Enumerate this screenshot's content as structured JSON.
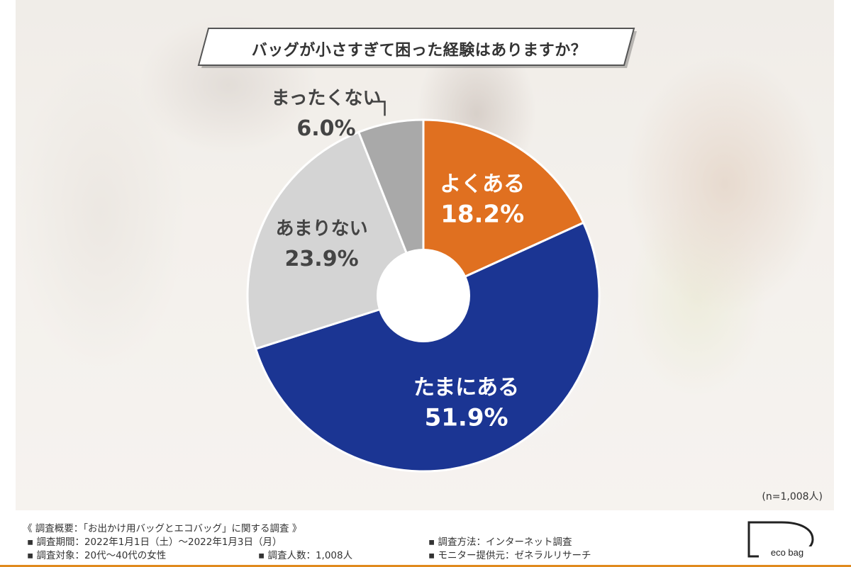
{
  "title": "バッグが小さすぎて困った経験はありますか？",
  "sample_note": "(n=1,008人)",
  "chart_data": {
    "type": "pie",
    "title": "バッグが小さすぎて困った経験はありますか？",
    "slices": [
      {
        "label": "よくある",
        "value": 18.2,
        "display": "18.2%",
        "color": "#e07020"
      },
      {
        "label": "たまにある",
        "value": 51.9,
        "display": "51.9%",
        "color": "#1b3593"
      },
      {
        "label": "あまりない",
        "value": 23.9,
        "display": "23.9%",
        "color": "#d4d4d4"
      },
      {
        "label": "まったくない",
        "value": 6.0,
        "display": "6.0%",
        "color": "#a9a9a9"
      }
    ]
  },
  "footer": {
    "overview": "《 調査概要：「お出かけ用バッグとエコバッグ」に関する調査 》",
    "period": "▪ 調査期間：2022年1月1日（土）～2022年1月3日（月）",
    "target": "▪ 調査対象：20代～40代の女性",
    "count": "▪ 調査人数：1,008人",
    "method": "▪ 調査方法：インターネット調査",
    "provider": "▪ モニター提供元：ゼネラルリサーチ"
  },
  "logo": {
    "text": "eco bag",
    "letter": "D"
  }
}
